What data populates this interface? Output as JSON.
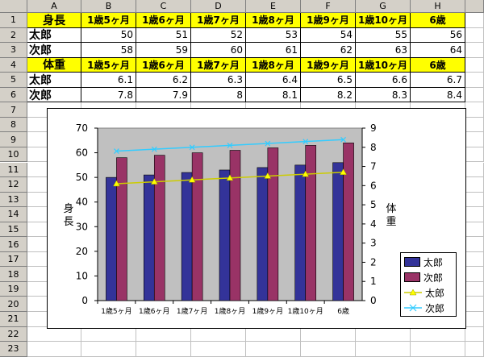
{
  "columns": [
    "A",
    "B",
    "C",
    "D",
    "E",
    "F",
    "G",
    "H"
  ],
  "rows": [
    "1",
    "2",
    "3",
    "4",
    "5",
    "6",
    "7",
    "8",
    "9",
    "10",
    "11",
    "12",
    "13",
    "14",
    "15",
    "16",
    "17",
    "18",
    "19",
    "20",
    "21",
    "22",
    "23"
  ],
  "table1": {
    "header": [
      "身長",
      "1歳5ヶ月",
      "1歳6ヶ月",
      "1歳7ヶ月",
      "1歳8ヶ月",
      "1歳9ヶ月",
      "1歳10ヶ月",
      "6歳"
    ],
    "rows": [
      {
        "name": "太郎",
        "values": [
          "50",
          "51",
          "52",
          "53",
          "54",
          "55",
          "56"
        ]
      },
      {
        "name": "次郎",
        "values": [
          "58",
          "59",
          "60",
          "61",
          "62",
          "63",
          "64"
        ]
      }
    ]
  },
  "table2": {
    "header": [
      "体重",
      "1歳5ヶ月",
      "1歳6ヶ月",
      "1歳7ヶ月",
      "1歳8ヶ月",
      "1歳9ヶ月",
      "1歳10ヶ月",
      "6歳"
    ],
    "rows": [
      {
        "name": "太郎",
        "values": [
          "6.1",
          "6.2",
          "6.3",
          "6.4",
          "6.5",
          "6.6",
          "6.7"
        ]
      },
      {
        "name": "次郎",
        "values": [
          "7.8",
          "7.9",
          "8",
          "8.1",
          "8.2",
          "8.3",
          "8.4"
        ]
      }
    ]
  },
  "chart_data": {
    "type": "bar",
    "categories": [
      "1歳5ヶ月",
      "1歳6ヶ月",
      "1歳7ヶ月",
      "1歳8ヶ月",
      "1歳9ヶ月",
      "1歳10ヶ月",
      "6歳"
    ],
    "series": [
      {
        "name": "太郎",
        "kind": "bar",
        "axis": "left",
        "values": [
          50,
          51,
          52,
          53,
          54,
          55,
          56
        ],
        "color": "#333399"
      },
      {
        "name": "次郎",
        "kind": "bar",
        "axis": "left",
        "values": [
          58,
          59,
          60,
          61,
          62,
          63,
          64
        ],
        "color": "#993366"
      },
      {
        "name": "太郎",
        "kind": "line",
        "axis": "right",
        "values": [
          6.1,
          6.2,
          6.3,
          6.4,
          6.5,
          6.6,
          6.7
        ],
        "color": "#ffff00"
      },
      {
        "name": "次郎",
        "kind": "line",
        "axis": "right",
        "values": [
          7.8,
          7.9,
          8,
          8.1,
          8.2,
          8.3,
          8.4
        ],
        "color": "#33ccff"
      }
    ],
    "ylabel_left": "身長",
    "ylabel_right": "体重",
    "ylim_left": [
      0,
      70
    ],
    "yticks_left": [
      "0",
      "10",
      "20",
      "30",
      "40",
      "50",
      "60",
      "70"
    ],
    "ylim_right": [
      0,
      9
    ],
    "yticks_right": [
      "0",
      "1",
      "2",
      "3",
      "4",
      "5",
      "6",
      "7",
      "8",
      "9"
    ],
    "plot_bg": "#c0c0c0",
    "grid": false,
    "legend_position": "bottom-right"
  }
}
